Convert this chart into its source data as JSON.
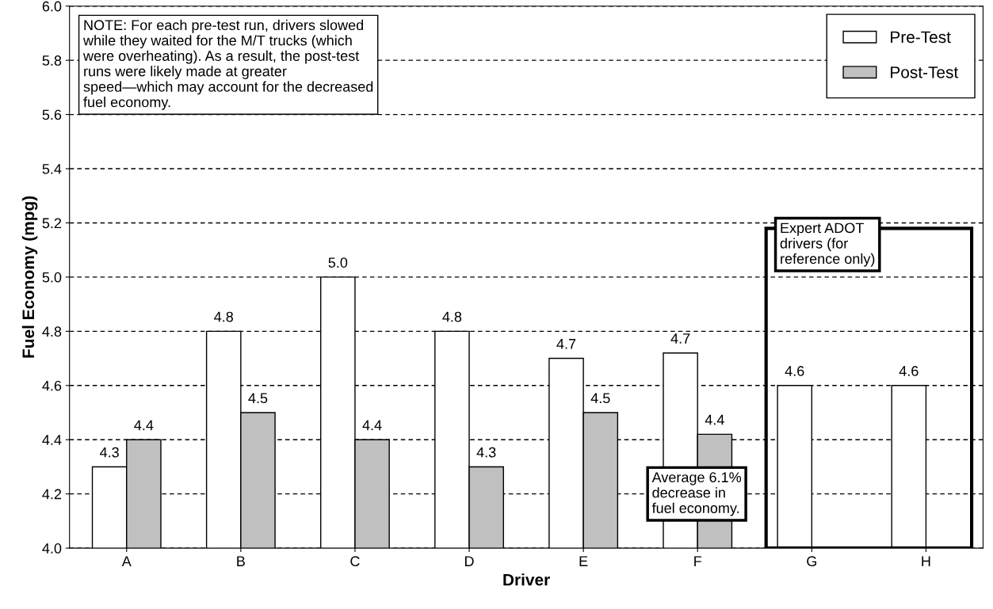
{
  "chart_data": {
    "type": "bar",
    "xlabel": "Driver",
    "ylabel": "Fuel Economy (mpg)",
    "categories": [
      "A",
      "B",
      "C",
      "D",
      "E",
      "F",
      "G",
      "H"
    ],
    "series": [
      {
        "name": "Pre-Test",
        "color": "#ffffff",
        "values": [
          4.3,
          4.8,
          5.0,
          4.8,
          4.7,
          4.72,
          4.6,
          4.6
        ],
        "value_labels": [
          "4.3",
          "4.8",
          "5.0",
          "4.8",
          "4.7",
          "4.7",
          "4.6",
          "4.6"
        ]
      },
      {
        "name": "Post-Test",
        "color": "#c0c0c0",
        "values": [
          4.4,
          4.5,
          4.4,
          4.3,
          4.5,
          4.42,
          null,
          null
        ],
        "value_labels": [
          "4.4",
          "4.5",
          "4.4",
          "4.3",
          "4.5",
          "4.4",
          null,
          null
        ]
      }
    ],
    "ylim": [
      4.0,
      6.0
    ],
    "yticks": [
      "4.0",
      "4.2",
      "4.4",
      "4.6",
      "4.8",
      "5.0",
      "5.2",
      "5.4",
      "5.6",
      "5.8",
      "6.0"
    ],
    "grid": "y",
    "legend": "top right",
    "annotations": [
      "NOTE: For each pre-test run, drivers slowed\nwhile they waited for the M/T trucks (which\nwere overheating). As a result, the post-test\nruns were likely made at greater\nspeed—which may account for the decreased\nfuel economy.",
      "Average 6.1%\ndecrease in\nfuel economy.",
      "Expert ADOT\ndrivers (for\nreference only)"
    ]
  }
}
